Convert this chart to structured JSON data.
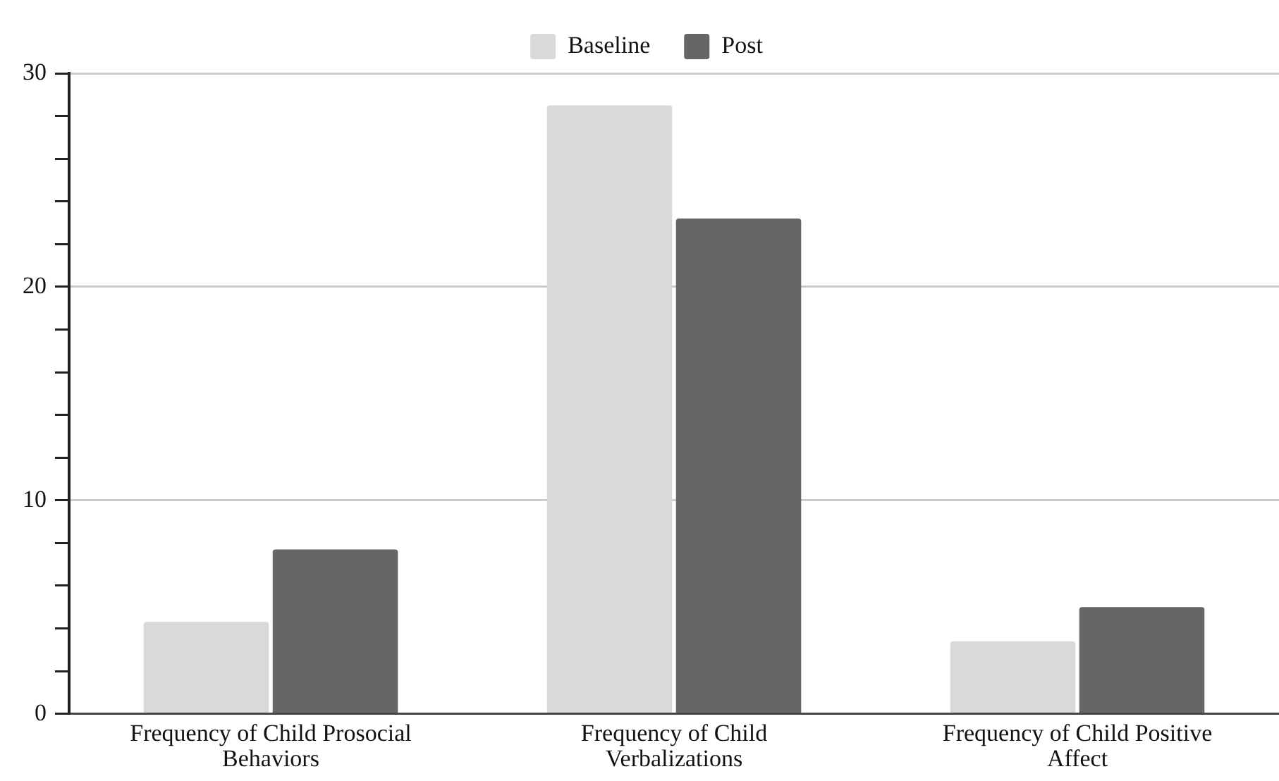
{
  "chart_data": {
    "type": "bar",
    "categories": [
      "Frequency of Child Prosocial Behaviors",
      "Frequency of Child Verbalizations",
      "Frequency of Child Positive Affect"
    ],
    "series": [
      {
        "name": "Baseline",
        "color": "#d9d9d9",
        "values": [
          4.3,
          28.5,
          3.4
        ]
      },
      {
        "name": "Post",
        "color": "#666666",
        "values": [
          7.7,
          23.2,
          5.0
        ]
      }
    ],
    "ylim": [
      0,
      30
    ],
    "yticks": [
      0,
      {
        "value": 2,
        "label": null
      },
      {
        "value": 4,
        "label": null
      },
      {
        "value": 6,
        "label": null
      },
      {
        "value": 8,
        "label": null
      },
      10,
      {
        "value": 12,
        "label": null
      },
      {
        "value": 14,
        "label": null
      },
      {
        "value": 16,
        "label": null
      },
      {
        "value": 18,
        "label": null
      },
      20,
      {
        "value": 22,
        "label": null
      },
      {
        "value": 24,
        "label": null
      },
      {
        "value": 26,
        "label": null
      },
      {
        "value": 28,
        "label": null
      },
      30
    ],
    "grid": "y",
    "legend": "top"
  }
}
